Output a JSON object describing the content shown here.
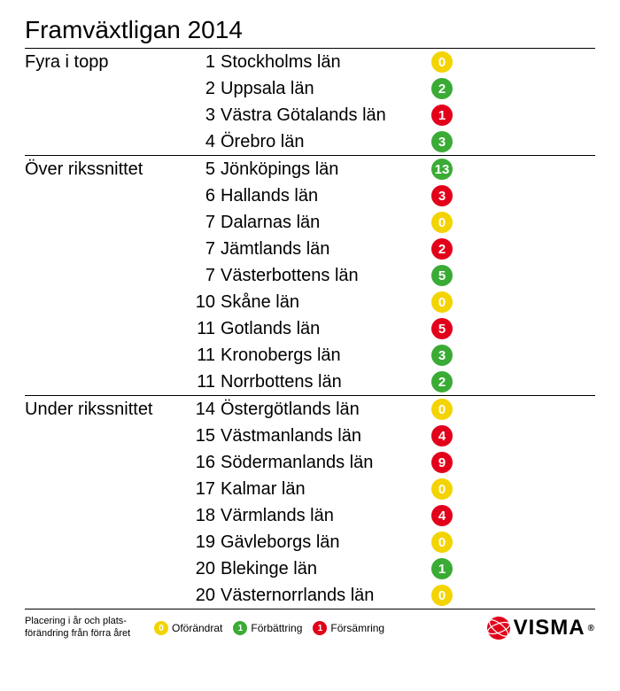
{
  "title": "Framväxtligan 2014",
  "colors": {
    "unchanged": "#f3d300",
    "improved": "#3aab35",
    "worsened": "#e2001a",
    "divider": "#000000",
    "logo_red": "#e2001a"
  },
  "legend": {
    "unchanged": {
      "value": "0",
      "label": "Oförändrat"
    },
    "improved": {
      "value": "1",
      "label": "Förbättring"
    },
    "worsened": {
      "value": "1",
      "label": "Försämring"
    }
  },
  "footnote_line1": "Placering i år och plats-",
  "footnote_line2": "förändring från förra året",
  "logo_text": "VISMA",
  "sections": [
    {
      "label": "Fyra i topp",
      "rows": [
        {
          "rank": "1",
          "county": "Stockholms län",
          "change": "0",
          "status": "unchanged"
        },
        {
          "rank": "2",
          "county": "Uppsala län",
          "change": "2",
          "status": "improved"
        },
        {
          "rank": "3",
          "county": "Västra Götalands län",
          "change": "1",
          "status": "worsened"
        },
        {
          "rank": "4",
          "county": "Örebro län",
          "change": "3",
          "status": "improved"
        }
      ]
    },
    {
      "label": "Över rikssnittet",
      "rows": [
        {
          "rank": "5",
          "county": "Jönköpings län",
          "change": "13",
          "status": "improved"
        },
        {
          "rank": "6",
          "county": "Hallands län",
          "change": "3",
          "status": "worsened"
        },
        {
          "rank": "7",
          "county": "Dalarnas län",
          "change": "0",
          "status": "unchanged"
        },
        {
          "rank": "7",
          "county": "Jämtlands län",
          "change": "2",
          "status": "worsened"
        },
        {
          "rank": "7",
          "county": "Västerbottens län",
          "change": "5",
          "status": "improved"
        },
        {
          "rank": "10",
          "county": "Skåne län",
          "change": "0",
          "status": "unchanged"
        },
        {
          "rank": "11",
          "county": "Gotlands län",
          "change": "5",
          "status": "worsened"
        },
        {
          "rank": "11",
          "county": "Kronobergs län",
          "change": "3",
          "status": "improved"
        },
        {
          "rank": "11",
          "county": "Norrbottens län",
          "change": "2",
          "status": "improved"
        }
      ]
    },
    {
      "label": "Under rikssnittet",
      "rows": [
        {
          "rank": "14",
          "county": "Östergötlands län",
          "change": "0",
          "status": "unchanged"
        },
        {
          "rank": "15",
          "county": "Västmanlands län",
          "change": "4",
          "status": "worsened"
        },
        {
          "rank": "16",
          "county": "Södermanlands län",
          "change": "9",
          "status": "worsened"
        },
        {
          "rank": "17",
          "county": "Kalmar län",
          "change": "0",
          "status": "unchanged"
        },
        {
          "rank": "18",
          "county": "Värmlands län",
          "change": "4",
          "status": "worsened"
        },
        {
          "rank": "19",
          "county": "Gävleborgs län",
          "change": "0",
          "status": "unchanged"
        },
        {
          "rank": "20",
          "county": "Blekinge län",
          "change": "1",
          "status": "improved"
        },
        {
          "rank": "20",
          "county": "Västernorrlands län",
          "change": "0",
          "status": "unchanged"
        }
      ]
    }
  ]
}
